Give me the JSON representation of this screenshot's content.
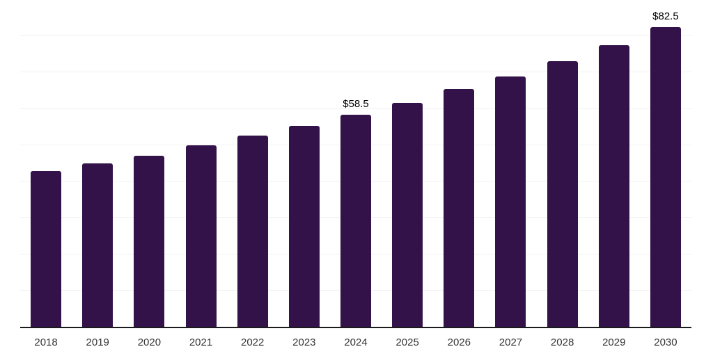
{
  "chart_data": {
    "type": "bar",
    "title": "",
    "xlabel": "",
    "ylabel": "",
    "categories": [
      "2018",
      "2019",
      "2020",
      "2021",
      "2022",
      "2023",
      "2024",
      "2025",
      "2026",
      "2027",
      "2028",
      "2029",
      "2030"
    ],
    "values": [
      42.9,
      45.0,
      47.2,
      49.9,
      52.6,
      55.4,
      58.5,
      61.7,
      65.4,
      69.0,
      73.2,
      77.6,
      82.5
    ],
    "data_labels": [
      "",
      "",
      "",
      "",
      "",
      "",
      "$58.5",
      "",
      "",
      "",
      "",
      "",
      "$82.5"
    ],
    "ylim": [
      0,
      90
    ],
    "grid": true,
    "grid_interval": 10,
    "legend_position": "none"
  },
  "colors": {
    "bar": "#331149",
    "gridline": "#f1f1f1",
    "axis_line": "#1a1a1a",
    "tick_label": "#333333",
    "data_label": "#000000",
    "background": "#ffffff"
  }
}
